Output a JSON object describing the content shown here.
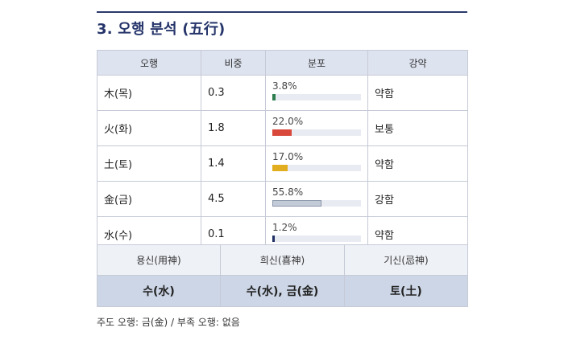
{
  "title": "3. 오행 분석 (五行)",
  "table": {
    "headers": [
      "오행",
      "비중",
      "분포",
      "강약"
    ],
    "rows": [
      {
        "element": "木(목)",
        "weight": "0.3",
        "percent_label": "3.8%",
        "percent": 3.8,
        "color": "#2e7d4f",
        "strength": "약함"
      },
      {
        "element": "火(화)",
        "weight": "1.8",
        "percent_label": "22.0%",
        "percent": 22.0,
        "color": "#d9493b",
        "strength": "보통"
      },
      {
        "element": "土(토)",
        "weight": "1.4",
        "percent_label": "17.0%",
        "percent": 17.0,
        "color": "#e2ad1f",
        "strength": "약함"
      },
      {
        "element": "金(금)",
        "weight": "4.5",
        "percent_label": "55.8%",
        "percent": 55.8,
        "color": "#c3cbd8",
        "strength": "강함"
      },
      {
        "element": "水(수)",
        "weight": "0.1",
        "percent_label": "1.2%",
        "percent": 1.2,
        "color": "#1f2f63",
        "strength": "약함"
      }
    ]
  },
  "spirits": {
    "headers": [
      "용신(用神)",
      "희신(喜神)",
      "기신(忌神)"
    ],
    "values": [
      "수(水)",
      "수(水), 금(金)",
      "토(土)"
    ]
  },
  "note": "주도 오행: 금(金) / 부족 오행: 없음"
}
